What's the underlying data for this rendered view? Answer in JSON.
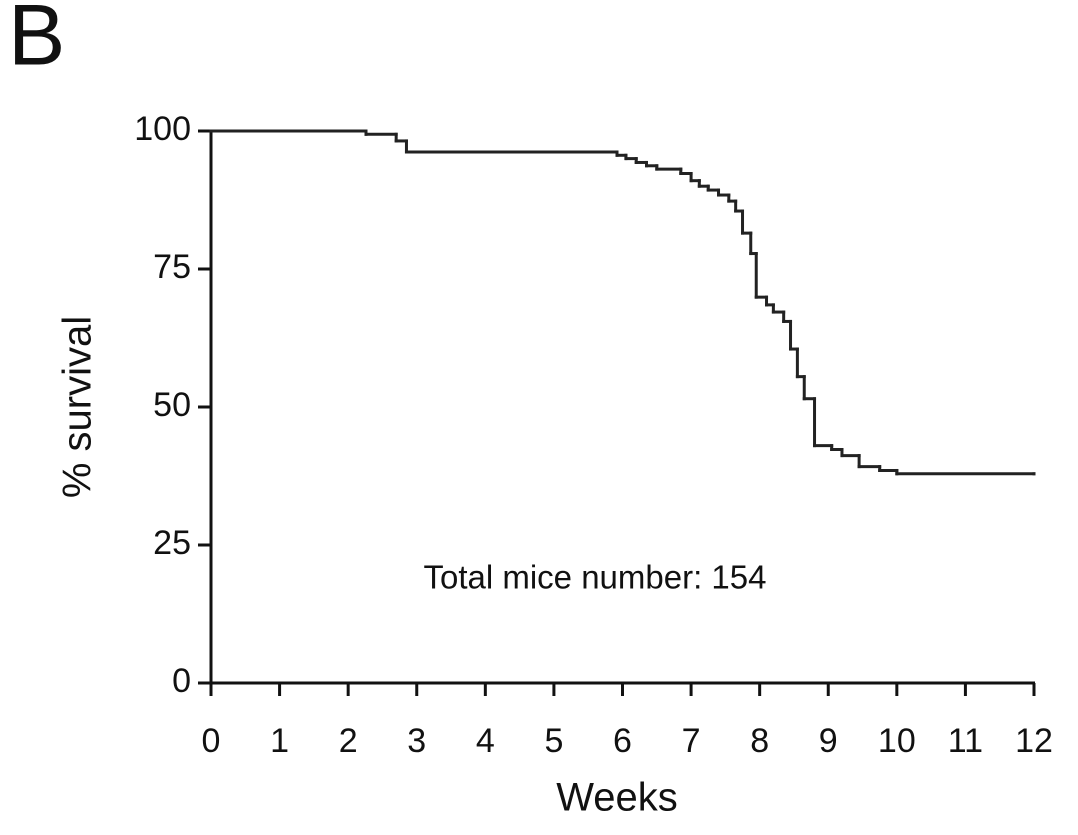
{
  "chart_data": {
    "type": "step",
    "panel_label": "B",
    "xlabel": "Weeks",
    "ylabel": "% survival",
    "annotation": "Total mice number: 154",
    "x": [
      0,
      2.26,
      2.7,
      2.85,
      5.92,
      6.05,
      6.2,
      6.35,
      6.5,
      6.85,
      7.0,
      7.12,
      7.25,
      7.4,
      7.55,
      7.65,
      7.75,
      7.87,
      7.95,
      8.1,
      8.2,
      8.35,
      8.45,
      8.55,
      8.65,
      8.8,
      9.05,
      9.2,
      9.45,
      9.75,
      10.0,
      12
    ],
    "values": [
      100,
      99.4,
      98.2,
      96.2,
      95.6,
      95,
      94.3,
      93.7,
      93.1,
      92.3,
      91,
      90,
      89.3,
      88.4,
      87.3,
      85.5,
      81.5,
      77.8,
      69.9,
      68.5,
      67.2,
      65.5,
      60.5,
      55.5,
      51.5,
      43,
      42.3,
      41.2,
      39.2,
      38.5,
      37.9,
      37.9
    ],
    "color": "#222222",
    "xlim": [
      0,
      12
    ],
    "xticks": [
      0,
      1,
      2,
      3,
      4,
      5,
      6,
      7,
      8,
      9,
      10,
      11,
      12
    ],
    "ylim": [
      0,
      100
    ],
    "yticks": [
      0,
      25,
      50,
      75,
      100
    ],
    "grid": false
  }
}
